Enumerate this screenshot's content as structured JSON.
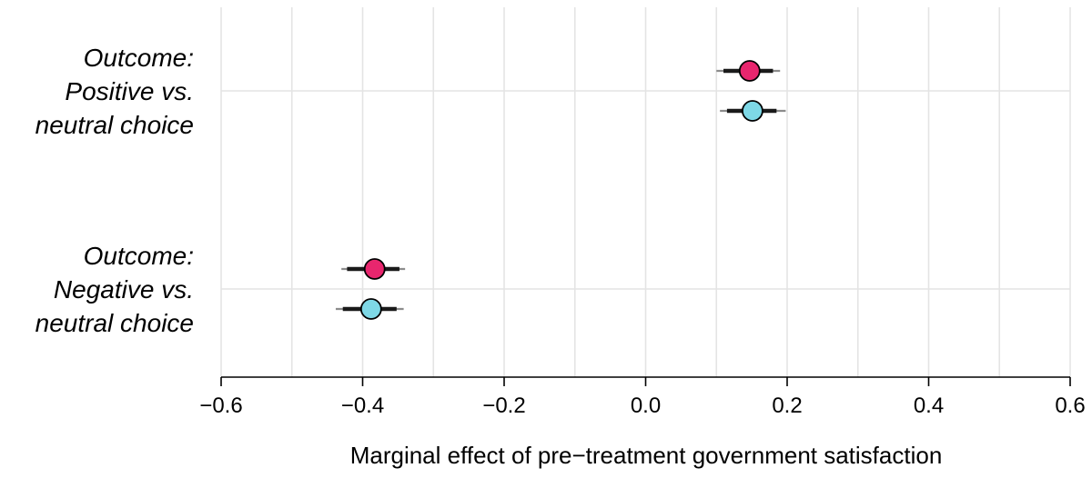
{
  "chart_data": {
    "type": "scatter",
    "title": "",
    "xlabel": "Marginal effect of pre−treatment government satisfaction",
    "ylabel": "",
    "xlim": [
      -0.6,
      0.6
    ],
    "x_ticks": [
      -0.6,
      -0.4,
      -0.2,
      0.0,
      0.2,
      0.4,
      0.6
    ],
    "x_tick_labels": [
      "−0.6",
      "−0.4",
      "−0.2",
      "0.0",
      "0.2",
      "0.4",
      "0.6"
    ],
    "x_minor_grid": [
      -0.5,
      -0.3,
      -0.1,
      0.1,
      0.3,
      0.5
    ],
    "grid": true,
    "legend": "none",
    "categories": [
      {
        "lines": [
          "Outcome:",
          "Positive vs.",
          "neutral choice"
        ],
        "points": [
          {
            "series": 0,
            "estimate": 0.147,
            "ci90": [
              0.11,
              0.18
            ],
            "ci95": [
              0.1,
              0.19
            ]
          },
          {
            "series": 1,
            "estimate": 0.151,
            "ci90": [
              0.115,
              0.185
            ],
            "ci95": [
              0.105,
              0.198
            ]
          }
        ]
      },
      {
        "lines": [
          "Outcome:",
          "Negative vs.",
          "neutral choice"
        ],
        "points": [
          {
            "series": 0,
            "estimate": -0.383,
            "ci90": [
              -0.422,
              -0.348
            ],
            "ci95": [
              -0.43,
              -0.34
            ]
          },
          {
            "series": 1,
            "estimate": -0.388,
            "ci90": [
              -0.428,
              -0.352
            ],
            "ci95": [
              -0.438,
              -0.342
            ]
          }
        ]
      }
    ],
    "series": [
      {
        "color": "#e8266e"
      },
      {
        "color": "#7ed8e6"
      }
    ]
  }
}
